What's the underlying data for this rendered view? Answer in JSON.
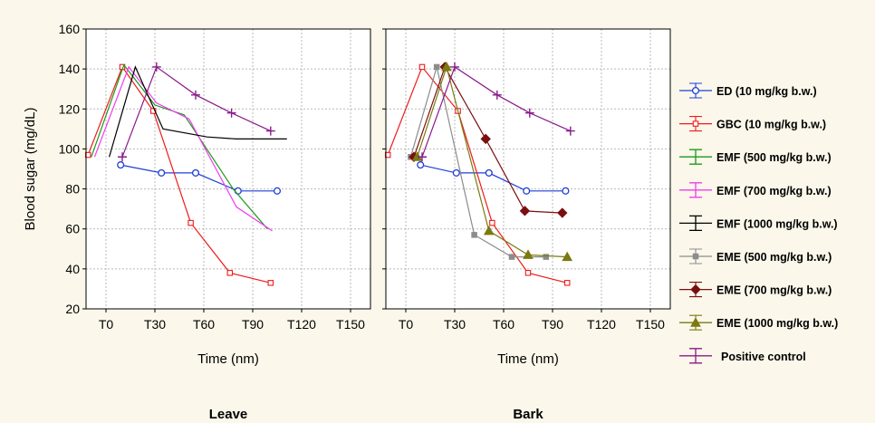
{
  "chart_data": {
    "type": "line",
    "ylabel": "Blood sugar (mg/dL)",
    "ylim": [
      20,
      160
    ],
    "yticks": [
      20,
      40,
      60,
      80,
      100,
      120,
      140,
      160
    ],
    "xlabel": "Time (nm)",
    "xticks": [
      "T0",
      "T30",
      "T60",
      "T90",
      "T120",
      "T150"
    ],
    "grid": true,
    "legend_position": "right",
    "panels": [
      {
        "title": "Leave",
        "series": [
          {
            "name": "ED (10 mg/kg b.w.)",
            "color": "#1f3fd6",
            "marker": "circle",
            "points": [
              [
                9,
                92
              ],
              [
                34,
                88
              ],
              [
                55,
                88
              ],
              [
                81,
                79
              ],
              [
                105,
                79
              ]
            ]
          },
          {
            "name": "GBC (10 mg/kg b.w.)",
            "color": "#ee1c1c",
            "marker": "square",
            "points": [
              [
                -11,
                97
              ],
              [
                10,
                141
              ],
              [
                29,
                119
              ],
              [
                52,
                63
              ],
              [
                76,
                38
              ],
              [
                101,
                33
              ]
            ]
          },
          {
            "name": "EMF (500 mg/kg b.w.)",
            "color": "#1a9a1a",
            "marker": "none",
            "points": [
              [
                -9,
                96
              ],
              [
                11,
                142
              ],
              [
                30,
                122
              ],
              [
                48,
                117
              ],
              [
                78,
                80
              ],
              [
                99,
                60
              ]
            ]
          },
          {
            "name": "EMF (700 mg/kg b.w.)",
            "color": "#f23af2",
            "marker": "none",
            "points": [
              [
                -7,
                96
              ],
              [
                14,
                141
              ],
              [
                31,
                123
              ],
              [
                51,
                115
              ],
              [
                80,
                71
              ],
              [
                102,
                59
              ]
            ]
          },
          {
            "name": "EMF (1000 mg/kg b.w.)",
            "color": "#000000",
            "marker": "none",
            "points": [
              [
                2,
                96
              ],
              [
                18,
                141
              ],
              [
                35,
                110
              ],
              [
                62,
                106
              ],
              [
                80,
                105
              ],
              [
                111,
                105
              ]
            ]
          },
          {
            "name": "Positive control",
            "color": "#8a1a8a",
            "marker": "plus",
            "points": [
              [
                10,
                96
              ],
              [
                31,
                141
              ],
              [
                55,
                127
              ],
              [
                77,
                118
              ],
              [
                101,
                109
              ]
            ]
          }
        ]
      },
      {
        "title": "Bark",
        "series": [
          {
            "name": "ED (10 mg/kg b.w.)",
            "color": "#1f3fd6",
            "marker": "circle",
            "points": [
              [
                9,
                92
              ],
              [
                31,
                88
              ],
              [
                51,
                88
              ],
              [
                74,
                79
              ],
              [
                98,
                79
              ]
            ]
          },
          {
            "name": "GBC (10 mg/kg b.w.)",
            "color": "#ee1c1c",
            "marker": "square",
            "points": [
              [
                -11,
                97
              ],
              [
                10,
                141
              ],
              [
                32,
                119
              ],
              [
                53,
                63
              ],
              [
                75,
                38
              ],
              [
                99,
                33
              ]
            ]
          },
          {
            "name": "EME (500 mg/kg b.w.)",
            "color": "#8c8c8c",
            "marker": "square",
            "points": [
              [
                3,
                96
              ],
              [
                19,
                141
              ],
              [
                42,
                57
              ],
              [
                65,
                46
              ],
              [
                86,
                46
              ]
            ]
          },
          {
            "name": "EME (700 mg/kg b.w.)",
            "color": "#7a0f0f",
            "marker": "diamond",
            "points": [
              [
                5,
                96
              ],
              [
                24,
                141
              ],
              [
                49,
                105
              ],
              [
                73,
                69
              ],
              [
                96,
                68
              ]
            ]
          },
          {
            "name": "EME (1000 mg/kg b.w.)",
            "color": "#7a7a10",
            "marker": "triangle",
            "points": [
              [
                7,
                96
              ],
              [
                25,
                141
              ],
              [
                51,
                59
              ],
              [
                75,
                47
              ],
              [
                99,
                46
              ]
            ]
          },
          {
            "name": "Positive control",
            "color": "#8a1a8a",
            "marker": "plus",
            "points": [
              [
                10,
                96
              ],
              [
                30,
                141
              ],
              [
                56,
                127
              ],
              [
                76,
                118
              ],
              [
                101,
                109
              ]
            ]
          }
        ]
      }
    ],
    "legend": [
      {
        "name": "ED (10 mg/kg b.w.)",
        "color": "#1f3fd6",
        "marker": "circle"
      },
      {
        "name": "GBC (10 mg/kg b.w.)",
        "color": "#ee1c1c",
        "marker": "square"
      },
      {
        "name": "EMF (500 mg/kg b.w.)",
        "color": "#1a9a1a",
        "marker": "none"
      },
      {
        "name": "EMF (700 mg/kg b.w.)",
        "color": "#f23af2",
        "marker": "none"
      },
      {
        "name": "EMF (1000 mg/kg b.w.)",
        "color": "#000000",
        "marker": "none"
      },
      {
        "name": "EME (500 mg/kg b.w.)",
        "color": "#8c8c8c",
        "marker": "square"
      },
      {
        "name": "EME (700 mg/kg b.w.)",
        "color": "#7a0f0f",
        "marker": "diamond"
      },
      {
        "name": "EME (1000 mg/kg b.w.)",
        "color": "#7a7a10",
        "marker": "triangle"
      },
      {
        "name": "Positive control",
        "color": "#8a1a8a",
        "marker": "plus"
      }
    ]
  }
}
